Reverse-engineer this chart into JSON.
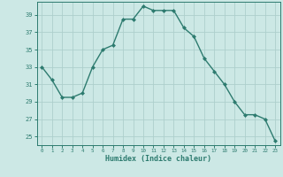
{
  "x": [
    0,
    1,
    2,
    3,
    4,
    5,
    6,
    7,
    8,
    9,
    10,
    11,
    12,
    13,
    14,
    15,
    16,
    17,
    18,
    19,
    20,
    21,
    22,
    23
  ],
  "y": [
    33,
    31.5,
    29.5,
    29.5,
    30,
    33,
    35,
    35.5,
    38.5,
    38.5,
    40,
    39.5,
    39.5,
    39.5,
    37.5,
    36.5,
    34,
    32.5,
    31,
    29,
    27.5,
    27.5,
    27,
    24.5
  ],
  "xlabel": "Humidex (Indice chaleur)",
  "xlim": [
    -0.5,
    23.5
  ],
  "ylim": [
    24,
    40.5
  ],
  "yticks": [
    25,
    27,
    29,
    31,
    33,
    35,
    37,
    39
  ],
  "xticks": [
    0,
    1,
    2,
    3,
    4,
    5,
    6,
    7,
    8,
    9,
    10,
    11,
    12,
    13,
    14,
    15,
    16,
    17,
    18,
    19,
    20,
    21,
    22,
    23
  ],
  "line_color": "#2d7b6f",
  "marker_color": "#2d7b6f",
  "bg_color": "#cce8e5",
  "grid_color": "#aecfcc",
  "label_color": "#2d7b6f",
  "tick_color": "#2d7b6f",
  "spine_color": "#2d7b6f"
}
